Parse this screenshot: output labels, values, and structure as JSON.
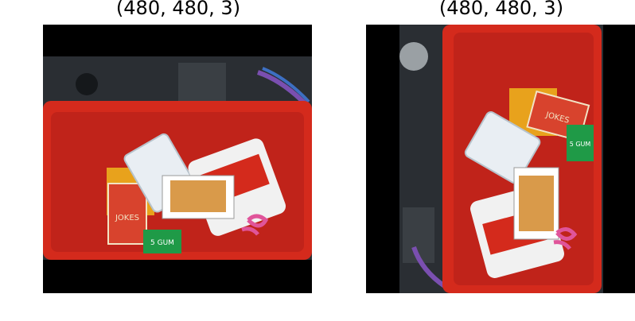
{
  "panels": [
    {
      "title": "(480, 480, 3)"
    },
    {
      "title": "(480, 480, 3)"
    }
  ],
  "scene": {
    "description_colors": {
      "bin": "#d42a1c",
      "bin_dark": "#a81c12",
      "floor": "#2a2e33",
      "pad": "#000000"
    },
    "labels": {
      "jokes_box": "JOKES",
      "gum_pack": "5 GUM"
    }
  }
}
